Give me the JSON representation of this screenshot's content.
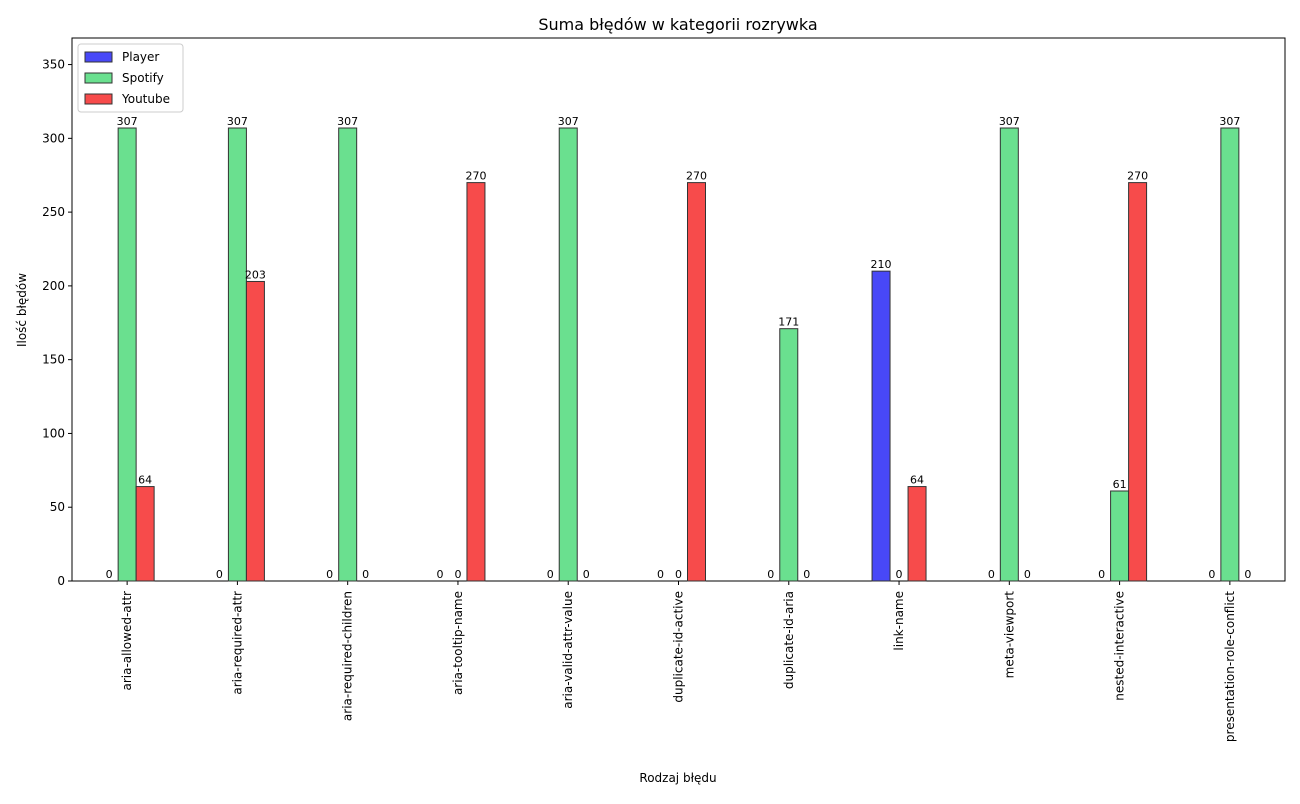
{
  "chart_data": {
    "type": "bar",
    "title": "Suma błędów w kategorii rozrywka",
    "xlabel": "Rodzaj błędu",
    "ylabel": "Ilość błędów",
    "ylim": [
      0,
      368
    ],
    "yticks": [
      0,
      50,
      100,
      150,
      200,
      250,
      300,
      350
    ],
    "grid": false,
    "legend_position": "top-left",
    "categories": [
      "aria-allowed-attr",
      "aria-required-attr",
      "aria-required-children",
      "aria-tooltip-name",
      "aria-valid-attr-value",
      "duplicate-id-active",
      "duplicate-id-aria",
      "link-name",
      "meta-viewport",
      "nested-interactive",
      "presentation-role-conflict"
    ],
    "series": [
      {
        "name": "Player",
        "color": "#4848f7",
        "values": [
          0,
          0,
          0,
          0,
          0,
          0,
          0,
          210,
          0,
          0,
          0
        ]
      },
      {
        "name": "Spotify",
        "color": "#6ae08f",
        "values": [
          307,
          307,
          307,
          0,
          307,
          0,
          171,
          0,
          307,
          61,
          307
        ]
      },
      {
        "name": "Youtube",
        "color": "#f74b4b",
        "values": [
          64,
          203,
          0,
          270,
          0,
          270,
          0,
          64,
          0,
          270,
          0
        ]
      }
    ]
  }
}
